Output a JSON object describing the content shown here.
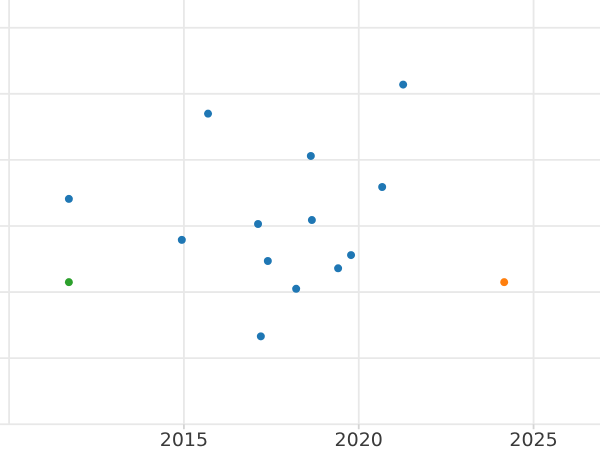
{
  "chart_data": {
    "type": "scatter",
    "title": "",
    "xlabel": "",
    "ylabel": "",
    "grid": true,
    "legend": false,
    "xlim": [
      2009.74,
      2026.9
    ],
    "ylim": [
      -0.39,
      6.42
    ],
    "background_color": "#ffffff",
    "grid_color": "#e8e8e8",
    "tick_mark_color": "#d4d4d4",
    "tick_label_color": "#3a3a3a",
    "tick_label_font_size": 19,
    "marker_radius": 4,
    "x_axis": {
      "ticks": [
        {
          "year": 2015,
          "label": "2015"
        },
        {
          "year": 2020,
          "label": "2020"
        },
        {
          "year": 2025,
          "label": "2025"
        }
      ],
      "grid_years": [
        2010,
        2015,
        2020,
        2025
      ]
    },
    "y_axis": {
      "gridline_values": [
        0,
        1,
        2,
        3,
        4,
        5,
        6
      ],
      "tick_labels_visible": false
    },
    "series": [
      {
        "name": "series-blue",
        "color": "#1f77b4",
        "points": [
          {
            "x": 2011.71,
            "y": 3.41
          },
          {
            "x": 2014.94,
            "y": 2.79
          },
          {
            "x": 2015.69,
            "y": 4.7
          },
          {
            "x": 2017.12,
            "y": 3.03
          },
          {
            "x": 2017.2,
            "y": 1.33
          },
          {
            "x": 2017.4,
            "y": 2.47
          },
          {
            "x": 2018.21,
            "y": 2.05
          },
          {
            "x": 2018.63,
            "y": 4.06
          },
          {
            "x": 2018.66,
            "y": 3.09
          },
          {
            "x": 2019.41,
            "y": 2.36
          },
          {
            "x": 2019.78,
            "y": 2.56
          },
          {
            "x": 2020.67,
            "y": 3.59
          },
          {
            "x": 2021.27,
            "y": 5.14
          }
        ]
      },
      {
        "name": "series-green",
        "color": "#2ca02c",
        "points": [
          {
            "x": 2011.71,
            "y": 2.15
          }
        ]
      },
      {
        "name": "series-orange",
        "color": "#ff7f0e",
        "points": [
          {
            "x": 2024.16,
            "y": 2.15
          }
        ]
      }
    ]
  }
}
